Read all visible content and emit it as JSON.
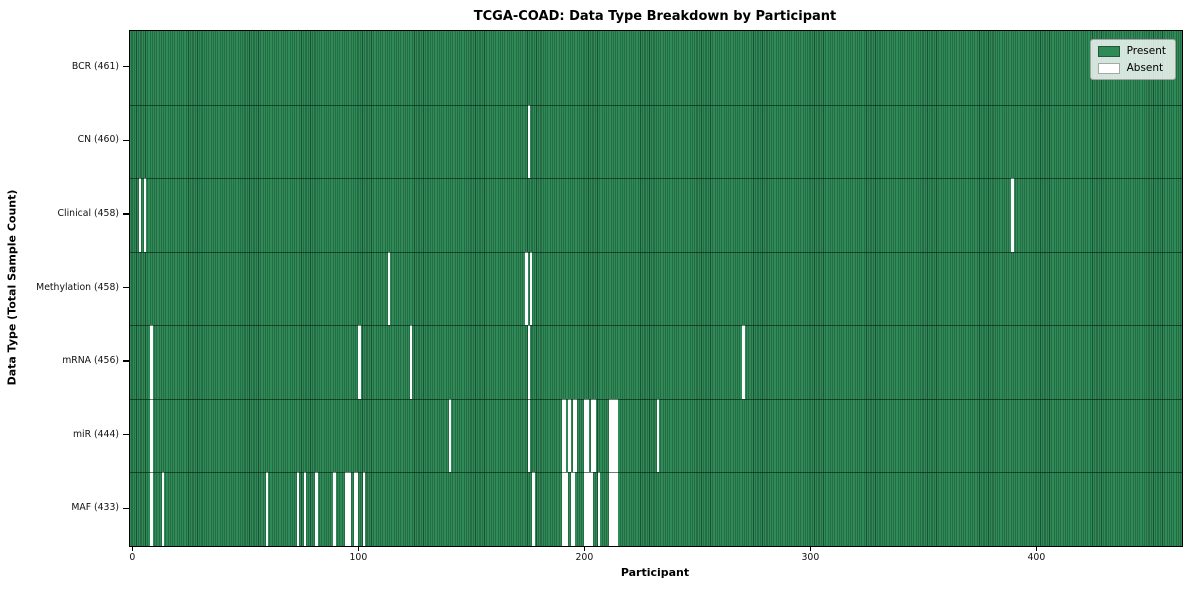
{
  "title": "TCGA-COAD: Data Type Breakdown by Participant",
  "xlabel": "Participant",
  "ylabel": "Data Type (Total Sample Count)",
  "legend": {
    "present_label": "Present",
    "absent_label": "Absent"
  },
  "colors": {
    "present": "#2e8b57",
    "present_edge": "#1d4f34",
    "absent": "#ffffff",
    "row_separator": "rgba(0,20,8,0.55)"
  },
  "chart_data": {
    "type": "heatmap",
    "title": "TCGA-COAD: Data Type Breakdown by Participant",
    "xlabel": "Participant",
    "ylabel": "Data Type (Total Sample Count)",
    "legend_entries": [
      "Present",
      "Absent"
    ],
    "legend_position": "upper right",
    "grid": false,
    "n_participants": 461,
    "x_ticks": [
      0,
      100,
      200,
      300,
      400
    ],
    "xlim": [
      -1.5,
      464
    ],
    "rows": [
      {
        "label": "BCR (461)",
        "data_type": "BCR",
        "present_count": 461,
        "absent_count": 0,
        "absent_participants": []
      },
      {
        "label": "CN (460)",
        "data_type": "CN",
        "present_count": 460,
        "absent_count": 1,
        "absent_participants": [
          175
        ]
      },
      {
        "label": "Clinical (458)",
        "data_type": "Clinical",
        "present_count": 458,
        "absent_count": 3,
        "absent_participants": [
          3,
          5,
          389
        ]
      },
      {
        "label": "Methylation (458)",
        "data_type": "Methylation",
        "present_count": 458,
        "absent_count": 3,
        "absent_participants": [
          113,
          174,
          176
        ]
      },
      {
        "label": "mRNA (456)",
        "data_type": "mRNA",
        "present_count": 456,
        "absent_count": 5,
        "absent_participants": [
          8,
          100,
          123,
          175,
          270
        ]
      },
      {
        "label": "miR (444)",
        "data_type": "miR",
        "present_count": 444,
        "absent_count": 17,
        "absent_participants": [
          8,
          140,
          175,
          190,
          191,
          193,
          195,
          196,
          200,
          201,
          203,
          204,
          211,
          212,
          213,
          214,
          232
        ]
      },
      {
        "label": "MAF (433)",
        "data_type": "MAF",
        "present_count": 433,
        "absent_count": 28,
        "absent_participants": [
          8,
          13,
          59,
          73,
          76,
          81,
          89,
          94,
          95,
          96,
          98,
          99,
          102,
          177,
          190,
          191,
          192,
          194,
          195,
          200,
          201,
          202,
          203,
          206,
          211,
          212,
          213,
          214
        ]
      }
    ]
  }
}
